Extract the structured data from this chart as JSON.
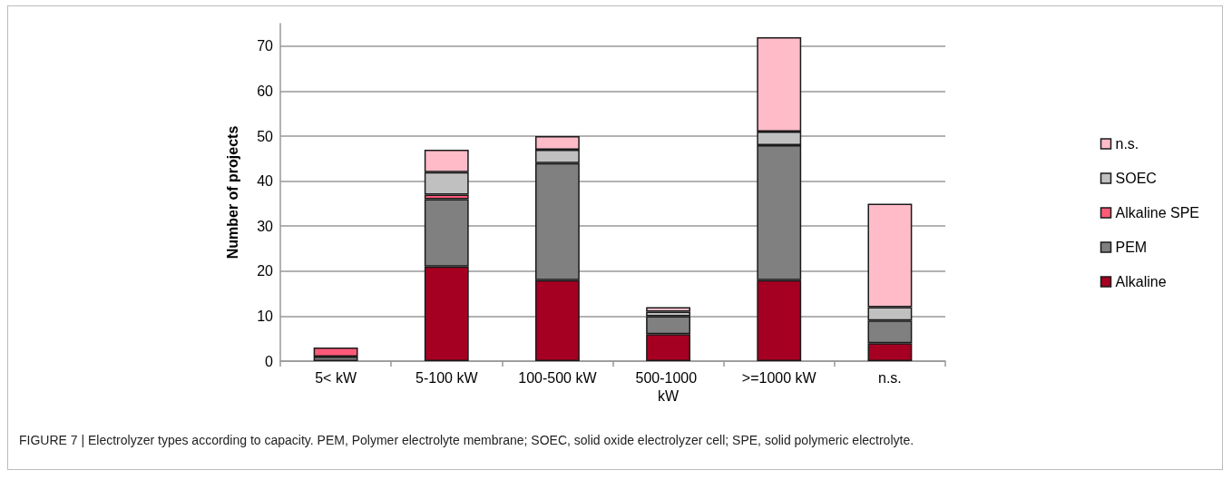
{
  "chart_data": {
    "type": "bar",
    "stacked": true,
    "ylabel": "Number of projects",
    "categories": [
      "5< kW",
      "5-100 kW",
      "100-500 kW",
      "500-1000 kW",
      ">=1000 kW",
      "n.s."
    ],
    "series": [
      {
        "name": "Alkaline",
        "color": "#a50021",
        "values": [
          0,
          21,
          18,
          6,
          18,
          4
        ]
      },
      {
        "name": "PEM",
        "color": "#808080",
        "values": [
          1,
          15,
          26,
          4,
          30,
          5
        ]
      },
      {
        "name": "Alkaline SPE",
        "color": "#ff5a78",
        "values": [
          2,
          1,
          0,
          0,
          0,
          0
        ]
      },
      {
        "name": "SOEC",
        "color": "#c0c0c0",
        "values": [
          0,
          5,
          3,
          1,
          3,
          3
        ]
      },
      {
        "name": "n.s.",
        "color": "#ffbbc8",
        "values": [
          0,
          5,
          3,
          1,
          21,
          23
        ]
      }
    ],
    "ylim": [
      0,
      75
    ],
    "yticks": [
      0,
      10,
      20,
      30,
      40,
      50,
      60,
      70
    ],
    "grid": "y",
    "legend": "right",
    "annotations": [
      "FIGURE 7 | Electrolyzer types according to capacity. PEM, Polymer electrolyte membrane; SOEC, solid oxide electrolyzer cell; SPE, solid polymeric electrolyte."
    ]
  }
}
